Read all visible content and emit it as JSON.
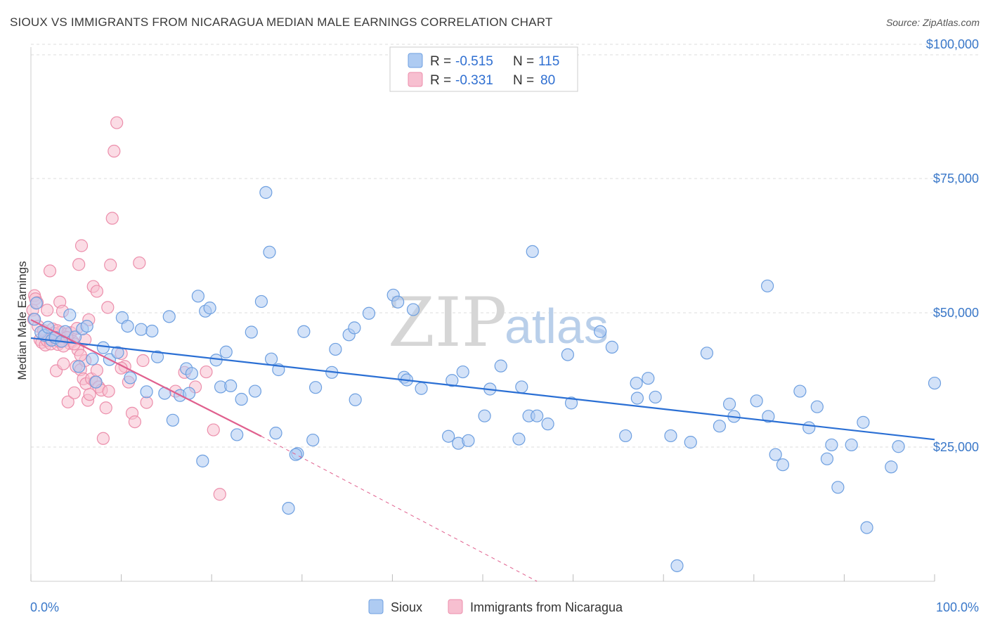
{
  "header": {
    "title": "SIOUX VS IMMIGRANTS FROM NICARAGUA MEDIAN MALE EARNINGS CORRELATION CHART",
    "source": "Source: ZipAtlas.com"
  },
  "watermark": {
    "zip": "ZIP",
    "atlas": "atlas"
  },
  "colors": {
    "sioux_fill": "#aecbf2",
    "sioux_stroke": "#6d9fe0",
    "sioux_line": "#2a6fd4",
    "nic_fill": "#f7bfd0",
    "nic_stroke": "#ec8eab",
    "nic_line": "#e0608e",
    "grid": "#dddddd",
    "tick_label": "#3a78c9"
  },
  "legend_top": {
    "rows": [
      {
        "r_label": "R = ",
        "r_value": "-0.515",
        "n_label": "N = ",
        "n_value": "115"
      },
      {
        "r_label": "R = ",
        "r_value": "-0.331",
        "n_label": "N = ",
        "n_value": "80"
      }
    ]
  },
  "legend_bottom": [
    "Sioux",
    "Immigrants from Nicaragua"
  ],
  "chart_data": {
    "type": "scatter",
    "title": "SIOUX VS IMMIGRANTS FROM NICARAGUA MEDIAN MALE EARNINGS CORRELATION CHART",
    "xlabel": "",
    "ylabel": "Median Male Earnings",
    "xlim": [
      0,
      100
    ],
    "ylim": [
      0,
      103000
    ],
    "x_tick_labels": [
      "0.0%",
      "100.0%"
    ],
    "y_ticks": [
      25000,
      50000,
      75000,
      100000
    ],
    "y_tick_labels": [
      "$25,000",
      "$50,000",
      "$75,000",
      "$100,000"
    ],
    "grid": true,
    "legend_position": "top-center",
    "series": [
      {
        "name": "Sioux",
        "stats": {
          "R": -0.515,
          "N": 115
        },
        "trend": {
          "x0": 0,
          "y0": 45300,
          "x1": 100,
          "y1": 26400
        },
        "points": [
          [
            0.4,
            48.8
          ],
          [
            0.6,
            51.8
          ],
          [
            1.1,
            46.4
          ],
          [
            1.5,
            45.8
          ],
          [
            1.9,
            47.3
          ],
          [
            2.3,
            44.9
          ],
          [
            2.7,
            45.4
          ],
          [
            3.4,
            44.7
          ],
          [
            3.8,
            46.5
          ],
          [
            4.3,
            49.6
          ],
          [
            4.9,
            45.5
          ],
          [
            5.3,
            40.0
          ],
          [
            5.7,
            47.0
          ],
          [
            6.2,
            47.5
          ],
          [
            6.8,
            41.4
          ],
          [
            7.2,
            37.1
          ],
          [
            8.0,
            43.5
          ],
          [
            8.7,
            41.3
          ],
          [
            9.6,
            42.6
          ],
          [
            10.1,
            49.1
          ],
          [
            10.7,
            47.5
          ],
          [
            11.0,
            37.9
          ],
          [
            12.2,
            46.9
          ],
          [
            12.8,
            35.3
          ],
          [
            13.4,
            46.6
          ],
          [
            14.0,
            41.8
          ],
          [
            14.8,
            35.0
          ],
          [
            15.3,
            49.3
          ],
          [
            15.7,
            30.0
          ],
          [
            16.5,
            34.6
          ],
          [
            17.2,
            39.6
          ],
          [
            17.5,
            35.0
          ],
          [
            17.8,
            38.7
          ],
          [
            18.5,
            53.1
          ],
          [
            19.0,
            22.4
          ],
          [
            19.3,
            50.3
          ],
          [
            19.8,
            50.9
          ],
          [
            20.5,
            41.2
          ],
          [
            21.0,
            36.2
          ],
          [
            21.6,
            42.7
          ],
          [
            22.1,
            36.4
          ],
          [
            22.8,
            27.3
          ],
          [
            23.3,
            33.9
          ],
          [
            24.4,
            46.4
          ],
          [
            24.8,
            35.4
          ],
          [
            25.5,
            52.1
          ],
          [
            26.6,
            41.4
          ],
          [
            27.1,
            27.6
          ],
          [
            26.0,
            72.4
          ],
          [
            26.4,
            61.3
          ],
          [
            27.4,
            39.4
          ],
          [
            29.5,
            23.8
          ],
          [
            29.3,
            23.6
          ],
          [
            28.5,
            13.6
          ],
          [
            30.2,
            46.5
          ],
          [
            31.2,
            26.3
          ],
          [
            31.5,
            36.1
          ],
          [
            33.3,
            38.9
          ],
          [
            33.7,
            43.2
          ],
          [
            35.2,
            45.9
          ],
          [
            35.8,
            47.2
          ],
          [
            35.9,
            33.8
          ],
          [
            37.4,
            49.9
          ],
          [
            40.1,
            53.3
          ],
          [
            40.6,
            52.0
          ],
          [
            41.3,
            38.0
          ],
          [
            41.6,
            37.5
          ],
          [
            42.3,
            50.6
          ],
          [
            43.2,
            35.9
          ],
          [
            46.2,
            27.0
          ],
          [
            46.6,
            37.4
          ],
          [
            47.3,
            25.7
          ],
          [
            47.8,
            39.0
          ],
          [
            48.4,
            26.2
          ],
          [
            50.2,
            30.8
          ],
          [
            50.8,
            35.8
          ],
          [
            52.0,
            40.1
          ],
          [
            54.0,
            26.5
          ],
          [
            54.3,
            36.2
          ],
          [
            55.1,
            30.8
          ],
          [
            55.5,
            61.4
          ],
          [
            56.0,
            30.8
          ],
          [
            57.2,
            29.3
          ],
          [
            59.4,
            42.2
          ],
          [
            59.8,
            33.2
          ],
          [
            63.0,
            46.5
          ],
          [
            64.3,
            43.6
          ],
          [
            65.8,
            27.1
          ],
          [
            67.0,
            36.9
          ],
          [
            67.1,
            34.1
          ],
          [
            68.3,
            37.8
          ],
          [
            69.1,
            34.3
          ],
          [
            70.8,
            27.1
          ],
          [
            71.5,
            2.9
          ],
          [
            73.0,
            25.9
          ],
          [
            74.8,
            42.5
          ],
          [
            76.2,
            28.9
          ],
          [
            77.3,
            33.0
          ],
          [
            77.8,
            30.7
          ],
          [
            80.3,
            33.6
          ],
          [
            81.5,
            55.0
          ],
          [
            81.6,
            30.7
          ],
          [
            82.4,
            23.6
          ],
          [
            83.2,
            21.7
          ],
          [
            85.1,
            35.4
          ],
          [
            86.1,
            28.6
          ],
          [
            87.0,
            32.5
          ],
          [
            88.1,
            22.8
          ],
          [
            88.6,
            25.4
          ],
          [
            89.3,
            17.5
          ],
          [
            90.8,
            25.4
          ],
          [
            92.1,
            29.6
          ],
          [
            92.5,
            10.0
          ],
          [
            95.2,
            21.3
          ],
          [
            96.0,
            25.1
          ],
          [
            100.0,
            36.9
          ]
        ]
      },
      {
        "name": "Immigrants from Nicaragua",
        "stats": {
          "R": -0.331,
          "N": 80
        },
        "trend": {
          "x0": 0,
          "y0": 48700,
          "x1": 25.5,
          "y1": 27000,
          "dashed_to_x": 56,
          "dashed_to_y": 0
        },
        "points": [
          [
            0.2,
            50.5
          ],
          [
            0.3,
            48.8
          ],
          [
            0.4,
            53.2
          ],
          [
            0.5,
            52.6
          ],
          [
            0.7,
            51.9
          ],
          [
            0.8,
            47.5
          ],
          [
            1.0,
            45.0
          ],
          [
            1.2,
            44.5
          ],
          [
            1.4,
            46.7
          ],
          [
            1.6,
            44.0
          ],
          [
            1.8,
            44.8
          ],
          [
            2.0,
            45.2
          ],
          [
            2.1,
            57.8
          ],
          [
            2.2,
            44.2
          ],
          [
            2.4,
            47.0
          ],
          [
            2.6,
            45.4
          ],
          [
            2.8,
            39.2
          ],
          [
            3.0,
            44.1
          ],
          [
            3.2,
            52.0
          ],
          [
            3.3,
            46.4
          ],
          [
            3.5,
            50.3
          ],
          [
            3.6,
            40.5
          ],
          [
            3.8,
            44.8
          ],
          [
            4.0,
            46.1
          ],
          [
            4.1,
            33.4
          ],
          [
            4.3,
            44.3
          ],
          [
            4.4,
            46.3
          ],
          [
            4.6,
            44.7
          ],
          [
            4.8,
            35.1
          ],
          [
            5.0,
            40.0
          ],
          [
            5.2,
            43.1
          ],
          [
            5.3,
            59.0
          ],
          [
            5.5,
            39.4
          ],
          [
            5.6,
            62.5
          ],
          [
            5.8,
            37.7
          ],
          [
            6.0,
            41.1
          ],
          [
            6.1,
            36.8
          ],
          [
            6.3,
            33.7
          ],
          [
            6.5,
            34.8
          ],
          [
            6.7,
            37.7
          ],
          [
            6.9,
            54.9
          ],
          [
            7.1,
            37.1
          ],
          [
            7.3,
            54.0
          ],
          [
            7.5,
            36.2
          ],
          [
            7.8,
            35.6
          ],
          [
            8.0,
            26.6
          ],
          [
            8.3,
            32.3
          ],
          [
            8.5,
            51.0
          ],
          [
            8.8,
            58.9
          ],
          [
            9.0,
            67.6
          ],
          [
            9.2,
            80.1
          ],
          [
            9.5,
            85.4
          ],
          [
            10.0,
            42.4
          ],
          [
            10.4,
            40.0
          ],
          [
            10.8,
            37.1
          ],
          [
            11.2,
            31.3
          ],
          [
            11.5,
            29.7
          ],
          [
            12.0,
            59.3
          ],
          [
            12.4,
            41.1
          ],
          [
            12.8,
            33.3
          ],
          [
            3.2,
            44.6
          ],
          [
            2.5,
            46.2
          ],
          [
            3.6,
            43.8
          ],
          [
            4.8,
            44.2
          ],
          [
            6.0,
            45.0
          ],
          [
            1.8,
            50.5
          ],
          [
            2.9,
            46.7
          ],
          [
            5.1,
            47.1
          ],
          [
            7.3,
            39.3
          ],
          [
            8.6,
            35.4
          ],
          [
            10.0,
            39.7
          ],
          [
            16.0,
            35.4
          ],
          [
            17.0,
            38.9
          ],
          [
            18.2,
            36.2
          ],
          [
            19.4,
            39.0
          ],
          [
            20.2,
            28.2
          ],
          [
            20.9,
            16.2
          ],
          [
            4.0,
            45.4
          ],
          [
            5.5,
            42.1
          ],
          [
            6.4,
            48.7
          ]
        ]
      }
    ]
  }
}
